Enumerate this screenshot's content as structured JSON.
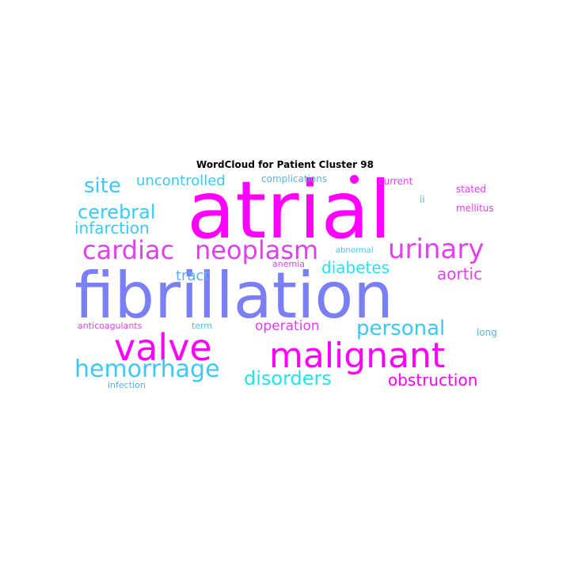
{
  "title": "WordCloud for Patient Cluster 98",
  "palette": {
    "magenta": "#ff00ff",
    "pink": "#ee44ee",
    "periwinkle": "#7b7ff5",
    "sky": "#3ec8f5",
    "cyan": "#22e4f0",
    "lightblue": "#5ab0f0"
  },
  "words": [
    {
      "text": "atrial",
      "color": "#ff00ff"
    },
    {
      "text": "fibrillation",
      "color": "#7b7ff5"
    },
    {
      "text": "valve",
      "color": "#ff00ff"
    },
    {
      "text": "malignant",
      "color": "#ff00ff"
    },
    {
      "text": "neoplasm",
      "color": "#e040f0"
    },
    {
      "text": "cardiac",
      "color": "#e040f0"
    },
    {
      "text": "urinary",
      "color": "#e040f0"
    },
    {
      "text": "hemorrhage",
      "color": "#3ec8f5"
    },
    {
      "text": "disorders",
      "color": "#22e4f0"
    },
    {
      "text": "obstruction",
      "color": "#ff00ff"
    },
    {
      "text": "personal",
      "color": "#3ec8f5"
    },
    {
      "text": "cerebral",
      "color": "#3ec8f5"
    },
    {
      "text": "site",
      "color": "#3ec8f5"
    },
    {
      "text": "uncontrolled",
      "color": "#3ec8f5"
    },
    {
      "text": "infarction",
      "color": "#3ec8f5"
    },
    {
      "text": "diabetes",
      "color": "#22e4f0"
    },
    {
      "text": "aortic",
      "color": "#e040f0"
    },
    {
      "text": "tract",
      "color": "#5ab0f0"
    },
    {
      "text": "operation",
      "color": "#e040f0"
    },
    {
      "text": "complications",
      "color": "#5ab0f0"
    },
    {
      "text": "current",
      "color": "#e040f0"
    },
    {
      "text": "stated",
      "color": "#e040f0"
    },
    {
      "text": "mellitus",
      "color": "#e040f0"
    },
    {
      "text": "ii",
      "color": "#5ab0f0"
    },
    {
      "text": "abnormal",
      "color": "#3ec8f5"
    },
    {
      "text": "anemia",
      "color": "#e040f0"
    },
    {
      "text": "anticoagulants",
      "color": "#e040f0"
    },
    {
      "text": "term",
      "color": "#3ec8f5"
    },
    {
      "text": "long",
      "color": "#5ab0f0"
    },
    {
      "text": "infection",
      "color": "#5ab0f0"
    }
  ]
}
